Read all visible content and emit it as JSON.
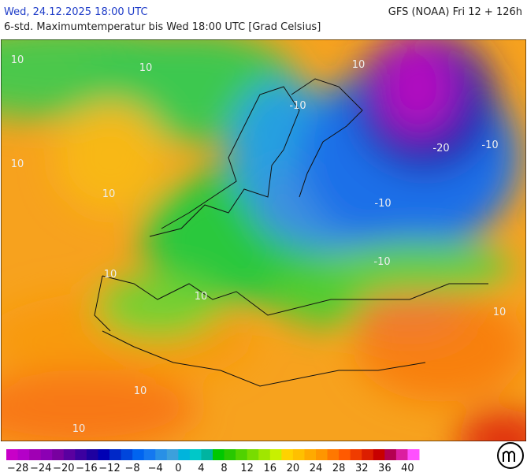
{
  "header": {
    "title": "Wed, 24.12.2025 18:00 UTC",
    "model": "GFS (NOAA) Fri 12 + 126h",
    "subtitle": "6-std. Maximumtemperatur bis Wed 18:00 UTC [Grad Celsius]"
  },
  "map": {
    "contour_labels": [
      "10",
      "10",
      "10",
      "10",
      "10",
      "10",
      "10",
      "10",
      "-10",
      "-10",
      "-20",
      "-10",
      "-10",
      "10",
      "10"
    ]
  },
  "colorbar": {
    "labels": [
      "−28",
      "−24",
      "−20",
      "−16",
      "−12",
      "−8",
      "−4",
      "0",
      "4",
      "8",
      "12",
      "16",
      "20",
      "24",
      "28",
      "32",
      "36",
      "40"
    ],
    "colors": [
      "#c800c8",
      "#b400c8",
      "#a000b4",
      "#8c00b4",
      "#7800a0",
      "#5a00a0",
      "#3c00a0",
      "#1e00a0",
      "#0000b4",
      "#0028c8",
      "#0046dc",
      "#0064f0",
      "#1478f0",
      "#2890e6",
      "#3ca0dc",
      "#00b4dc",
      "#00c8c8",
      "#00b4a0",
      "#00c800",
      "#28c800",
      "#50d200",
      "#78dc00",
      "#a0e600",
      "#c8f000",
      "#ffd200",
      "#ffc000",
      "#ffaa00",
      "#ff9600",
      "#ff7800",
      "#ff5a00",
      "#f03c00",
      "#dc1e00",
      "#c80000",
      "#b40050",
      "#dc1ea0",
      "#ff50ff"
    ]
  }
}
